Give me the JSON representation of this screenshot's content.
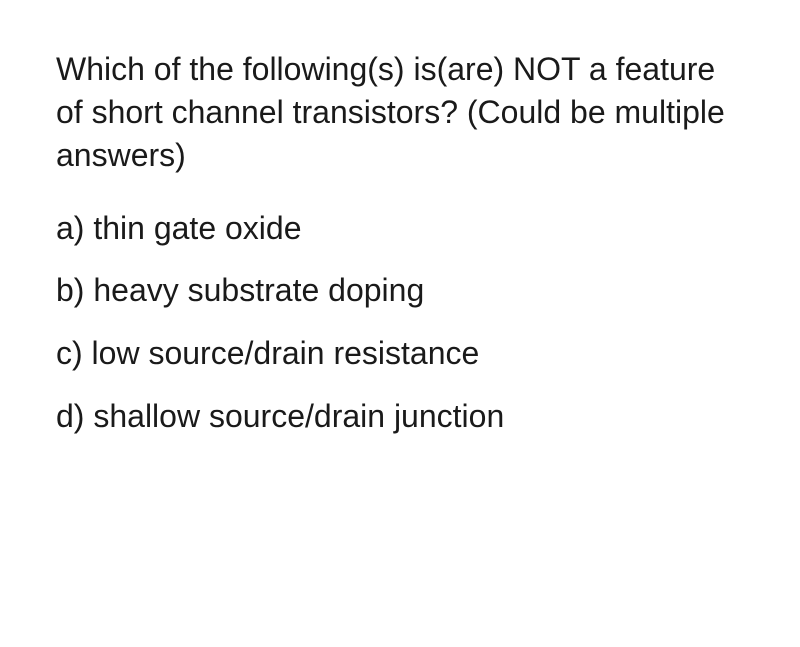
{
  "question": {
    "text": "Which of the following(s) is(are) NOT a feature of short channel transistors? (Could be multiple answers)",
    "fontsize": 32,
    "color": "#1a1a1a"
  },
  "options": [
    {
      "label": "a) thin gate oxide"
    },
    {
      "label": "b) heavy substrate doping"
    },
    {
      "label": "c) low source/drain resistance"
    },
    {
      "label": "d) shallow source/drain junction"
    }
  ],
  "styling": {
    "background_color": "#ffffff",
    "text_color": "#1a1a1a",
    "option_fontsize": 32,
    "line_height": 1.35
  }
}
